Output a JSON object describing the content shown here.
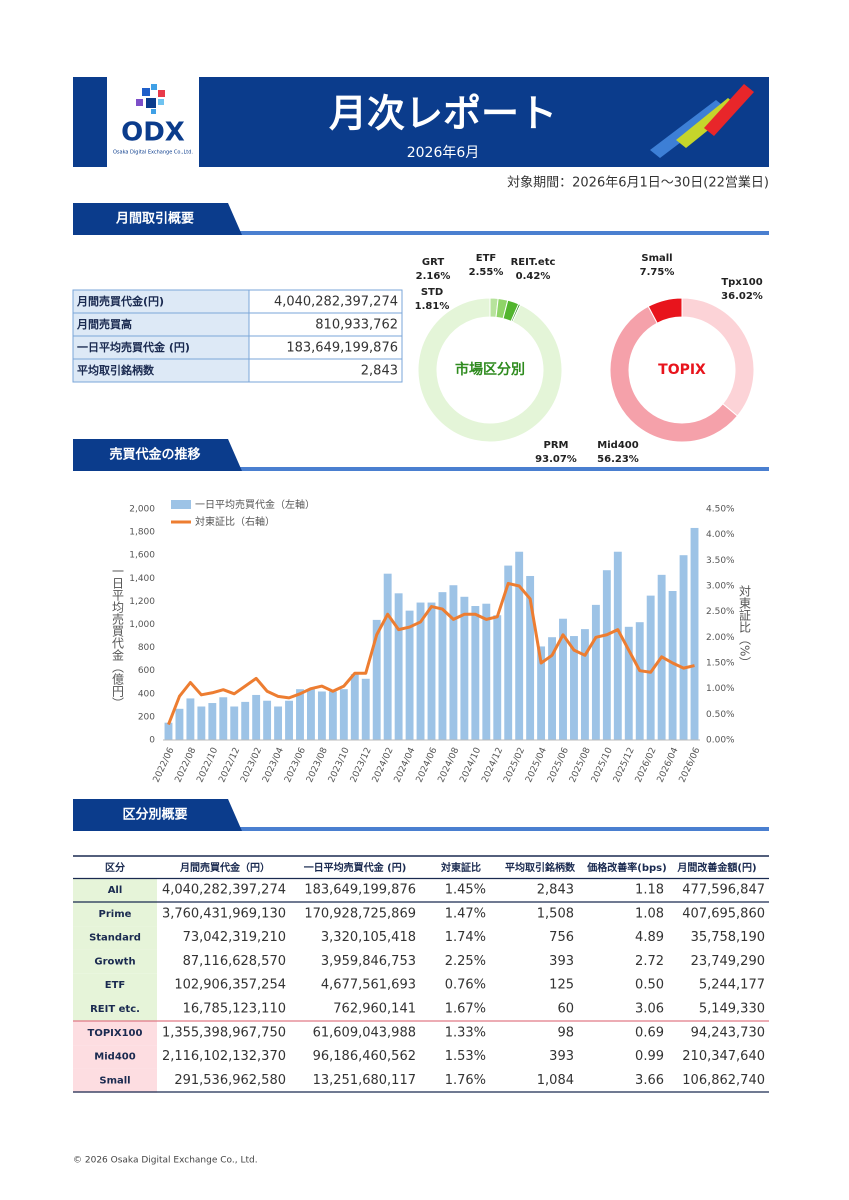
{
  "header": {
    "logo": "ODX",
    "logo_sub": "Osaka Digital Exchange Co.,Ltd.",
    "title": "月次レポート",
    "subtitle": "2026年6月",
    "period": "対象期間：2026年6月1日～30日(22営業日)"
  },
  "sections": [
    "月間取引概要",
    "売買代金の推移",
    "区分別概要"
  ],
  "summary": {
    "rows": [
      [
        "月間売買代金(円)",
        "4,040,282,397,274"
      ],
      [
        "月間売買高",
        "810,933,762"
      ],
      [
        "一日平均売買代金 (円)",
        "183,649,199,876"
      ],
      [
        "平均取引銘柄数",
        "2,843"
      ]
    ]
  },
  "chart_data": [
    {
      "type": "pie",
      "donut": true,
      "title": "市場区分別",
      "categories": [
        "STD",
        "GRT",
        "ETF",
        "REIT.etc",
        "PRM"
      ],
      "values": [
        1.81,
        2.16,
        2.55,
        0.42,
        93.07
      ],
      "value_labels": [
        "1.81%",
        "2.16%",
        "2.55%",
        "0.42%",
        "93.07%"
      ],
      "colors": [
        "#b7e39c",
        "#8fd468",
        "#52b52e",
        "#2e8b1e",
        "#e4f5d8"
      ],
      "title_color": "#2e8b1e"
    },
    {
      "type": "pie",
      "donut": true,
      "title": "TOPIX",
      "categories": [
        "Tpx100",
        "Mid400",
        "Small"
      ],
      "values": [
        36.02,
        56.23,
        7.75
      ],
      "value_labels": [
        "36.02%",
        "56.23%",
        "7.75%"
      ],
      "colors": [
        "#fcd3d7",
        "#f5a1aa",
        "#e8141c"
      ],
      "title_color": "#e8141c"
    },
    {
      "type": "bar_line",
      "categories": [
        "2022/06",
        null,
        "2022/08",
        null,
        "2022/10",
        null,
        "2022/12",
        null,
        "2023/02",
        null,
        "2023/04",
        null,
        "2023/06",
        null,
        "2023/08",
        null,
        "2023/10",
        null,
        "2023/12",
        null,
        "2024/02",
        null,
        "2024/04",
        null,
        "2024/06",
        null,
        "2024/08",
        null,
        "2024/10",
        null,
        "2024/12",
        null,
        "2025/02",
        null,
        "2025/04",
        null,
        "2025/06",
        null,
        "2025/08",
        null,
        "2025/10",
        null,
        "2025/12",
        null,
        "2026/02",
        null,
        "2026/04",
        null,
        "2026/06"
      ],
      "series": [
        {
          "name": "一日平均売買代金（左軸）",
          "type": "bar",
          "color": "#9dc3e6",
          "values": [
            150,
            270,
            360,
            290,
            320,
            370,
            290,
            330,
            390,
            340,
            290,
            340,
            440,
            440,
            420,
            420,
            440,
            570,
            530,
            1040,
            1440,
            1270,
            1120,
            1190,
            1190,
            1280,
            1340,
            1240,
            1160,
            1180,
            1080,
            1510,
            1630,
            1420,
            810,
            890,
            1050,
            900,
            960,
            1170,
            1470,
            1630,
            980,
            1020,
            1250,
            1430,
            1290,
            1600,
            1836
          ]
        },
        {
          "name": "対東証比（右軸）",
          "type": "line",
          "axis": "y2",
          "color": "#ed7d31",
          "values": [
            0.3,
            0.85,
            1.12,
            0.88,
            0.92,
            0.98,
            0.9,
            1.05,
            1.2,
            0.95,
            0.85,
            0.82,
            0.9,
            1.0,
            1.05,
            0.95,
            1.05,
            1.3,
            1.3,
            2.05,
            2.45,
            2.15,
            2.2,
            2.3,
            2.6,
            2.55,
            2.35,
            2.45,
            2.45,
            2.35,
            2.4,
            3.05,
            3.0,
            2.75,
            1.5,
            1.65,
            2.05,
            1.75,
            1.65,
            2.0,
            2.05,
            2.15,
            1.75,
            1.35,
            1.32,
            1.62,
            1.5,
            1.4,
            1.45
          ]
        }
      ],
      "ylabel": "一日平均売買代金（億円）",
      "y2label": "対東証比（%）",
      "ylim": [
        0,
        2000
      ],
      "yticks": [
        0,
        200,
        400,
        600,
        800,
        {
          "value": 1000,
          "label": "1,000"
        },
        {
          "value": 1200,
          "label": "1,200"
        },
        {
          "value": 1400,
          "label": "1,400"
        },
        {
          "value": 1600,
          "label": "1,600"
        },
        {
          "value": 1800,
          "label": "1,800"
        },
        {
          "value": 2000,
          "label": "2,000"
        }
      ],
      "y2lim": [
        0,
        4.5
      ],
      "y2ticks": [
        {
          "value": 0,
          "label": "0.00%"
        },
        {
          "value": 0.5,
          "label": "0.50%"
        },
        {
          "value": 1,
          "label": "1.00%"
        },
        {
          "value": 1.5,
          "label": "1.50%"
        },
        {
          "value": 2,
          "label": "2.00%"
        },
        {
          "value": 2.5,
          "label": "2.50%"
        },
        {
          "value": 3,
          "label": "3.00%"
        },
        {
          "value": 3.5,
          "label": "3.50%"
        },
        {
          "value": 4,
          "label": "4.00%"
        },
        {
          "value": 4.5,
          "label": "4.50%"
        }
      ],
      "grid": false
    }
  ],
  "table": {
    "header": [
      "区分",
      "月間売買代金（円）",
      "一日平均売買代金 (円)",
      "対東証比",
      "平均取引銘柄数",
      "価格改善率(bps)",
      "月間改善金額(円)"
    ],
    "rows": [
      [
        "All",
        "4,040,282,397,274",
        "183,649,199,876",
        "1.45%",
        "2,843",
        "1.18",
        "477,596,847"
      ],
      [
        "Prime",
        "3,760,431,969,130",
        "170,928,725,869",
        "1.47%",
        "1,508",
        "1.08",
        "407,695,860"
      ],
      [
        "Standard",
        "73,042,319,210",
        "3,320,105,418",
        "1.74%",
        "756",
        "4.89",
        "35,758,190"
      ],
      [
        "Growth",
        "87,116,628,570",
        "3,959,846,753",
        "2.25%",
        "393",
        "2.72",
        "23,749,290"
      ],
      [
        "ETF",
        "102,906,357,254",
        "4,677,561,693",
        "0.76%",
        "125",
        "0.50",
        "5,244,177"
      ],
      [
        "REIT etc.",
        "16,785,123,110",
        "762,960,141",
        "1.67%",
        "60",
        "3.06",
        "5,149,330"
      ],
      [
        "TOPIX100",
        "1,355,398,967,750",
        "61,609,043,988",
        "1.33%",
        "98",
        "0.69",
        "94,243,730"
      ],
      [
        "Mid400",
        "2,116,102,132,370",
        "96,186,460,562",
        "1.53%",
        "393",
        "0.99",
        "210,347,640"
      ],
      [
        "Small",
        "291,536,962,580",
        "13,251,680,117",
        "1.76%",
        "1,084",
        "3.66",
        "106,862,740"
      ]
    ]
  },
  "footer": "© 2026 Osaka Digital Exchange Co., Ltd."
}
